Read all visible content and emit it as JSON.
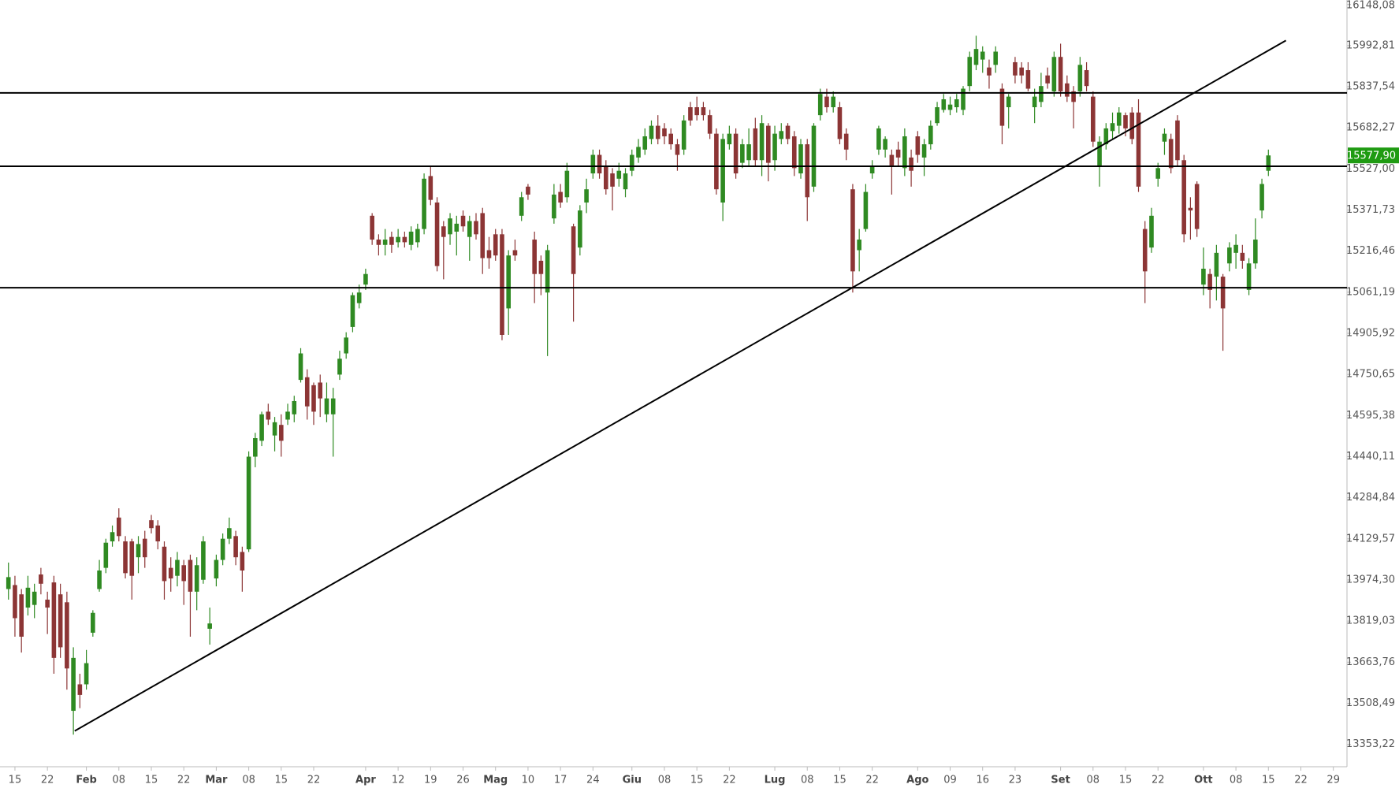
{
  "chart_data": {
    "type": "candlestick",
    "up_color": "#2f8a22",
    "down_color": "#8c3535",
    "line_color": "#000000",
    "xlim": [
      -1.3,
      206.1
    ],
    "xticks": [
      {
        "value": 1,
        "label": "15"
      },
      {
        "value": 6,
        "label": "22"
      },
      {
        "value": 12,
        "label": "Feb"
      },
      {
        "value": 17,
        "label": "08"
      },
      {
        "value": 22,
        "label": "15"
      },
      {
        "value": 27,
        "label": "22"
      },
      {
        "value": 32,
        "label": "Mar"
      },
      {
        "value": 37,
        "label": "08"
      },
      {
        "value": 42,
        "label": "15"
      },
      {
        "value": 47,
        "label": "22"
      },
      {
        "value": 55,
        "label": "Apr"
      },
      {
        "value": 60,
        "label": "12"
      },
      {
        "value": 65,
        "label": "19"
      },
      {
        "value": 70,
        "label": "26"
      },
      {
        "value": 75,
        "label": "Mag"
      },
      {
        "value": 80,
        "label": "10"
      },
      {
        "value": 85,
        "label": "17"
      },
      {
        "value": 90,
        "label": "24"
      },
      {
        "value": 96,
        "label": "Giu"
      },
      {
        "value": 101,
        "label": "08"
      },
      {
        "value": 106,
        "label": "15"
      },
      {
        "value": 111,
        "label": "22"
      },
      {
        "value": 118,
        "label": "Lug"
      },
      {
        "value": 123,
        "label": "08"
      },
      {
        "value": 128,
        "label": "15"
      },
      {
        "value": 133,
        "label": "22"
      },
      {
        "value": 140,
        "label": "Ago"
      },
      {
        "value": 145,
        "label": "09"
      },
      {
        "value": 150,
        "label": "16"
      },
      {
        "value": 155,
        "label": "23"
      },
      {
        "value": 162,
        "label": "Set"
      },
      {
        "value": 167,
        "label": "08"
      },
      {
        "value": 172,
        "label": "15"
      },
      {
        "value": 177,
        "label": "22"
      },
      {
        "value": 184,
        "label": "Ott"
      },
      {
        "value": 189,
        "label": "08"
      },
      {
        "value": 194,
        "label": "15"
      },
      {
        "value": 199,
        "label": "22"
      },
      {
        "value": 204,
        "label": "29"
      }
    ],
    "ylim": [
      13268.8,
      16165
    ],
    "yticks": [
      {
        "value": 16148.08,
        "label": "16148,08"
      },
      {
        "value": 15992.81,
        "label": "15992,81"
      },
      {
        "value": 15837.54,
        "label": "15837,54"
      },
      {
        "value": 15682.27,
        "label": "15682,27"
      },
      {
        "value": 15527.0,
        "label": "15527,00"
      },
      {
        "value": 15371.73,
        "label": "15371,73"
      },
      {
        "value": 15216.46,
        "label": "15216,46"
      },
      {
        "value": 15061.19,
        "label": "15061,19"
      },
      {
        "value": 14905.92,
        "label": "14905,92"
      },
      {
        "value": 14750.65,
        "label": "14750,65"
      },
      {
        "value": 14595.38,
        "label": "14595,38"
      },
      {
        "value": 14440.11,
        "label": "14440,11"
      },
      {
        "value": 14284.84,
        "label": "14284,84"
      },
      {
        "value": 14129.57,
        "label": "14129,57"
      },
      {
        "value": 13974.3,
        "label": "13974,30"
      },
      {
        "value": 13819.03,
        "label": "13819,03"
      },
      {
        "value": 13663.76,
        "label": "13663,76"
      },
      {
        "value": 13508.49,
        "label": "13508,49"
      },
      {
        "value": 13353.22,
        "label": "13353,22"
      }
    ],
    "last_price": {
      "value": 15577.9,
      "label": "15577,90"
    },
    "levels": [
      15814,
      15537,
      15078
    ],
    "trendline": {
      "x": [
        10.2,
        196.7
      ],
      "y": [
        13404,
        16012
      ]
    },
    "open": [
      13940,
      13955,
      13920,
      13870,
      13880,
      13995,
      13900,
      13965,
      13920,
      13890,
      13480,
      13580,
      13580,
      13775,
      13940,
      14020,
      14120,
      14210,
      14120,
      14120,
      14060,
      14130,
      14200,
      14180,
      14100,
      14020,
      13990,
      14030,
      14050,
      13930,
      13975,
      13790,
      13980,
      14050,
      14130,
      14140,
      14080,
      14090,
      14440,
      14500,
      14610,
      14520,
      14560,
      14580,
      14600,
      14730,
      14740,
      14710,
      14720,
      14600,
      14600,
      14750,
      14830,
      14930,
      15020,
      15090,
      15350,
      15260,
      15240,
      15270,
      15250,
      15270,
      15240,
      15250,
      15300,
      15500,
      15400,
      15310,
      15280,
      15290,
      15350,
      15270,
      15330,
      15360,
      15220,
      15280,
      15280,
      15000,
      15220,
      15350,
      15460,
      15260,
      15180,
      15060,
      15340,
      15440,
      15420,
      15310,
      15230,
      15400,
      15510,
      15580,
      15540,
      15510,
      15490,
      15450,
      15520,
      15570,
      15600,
      15640,
      15690,
      15680,
      15660,
      15620,
      15600,
      15760,
      15760,
      15760,
      15730,
      15660,
      15400,
      15620,
      15660,
      15550,
      15560,
      15680,
      15560,
      15690,
      15560,
      15640,
      15690,
      15650,
      15510,
      15620,
      15460,
      15730,
      15800,
      15760,
      15760,
      15660,
      15450,
      15220,
      15300,
      15510,
      15600,
      15600,
      15580,
      15600,
      15530,
      15570,
      15650,
      15570,
      15620,
      15700,
      15750,
      15750,
      15760,
      15750,
      15840,
      15920,
      15940,
      15910,
      15920,
      15830,
      15760,
      15930,
      15910,
      15900,
      15760,
      15780,
      15880,
      15820,
      15950,
      15850,
      15820,
      15820,
      15900,
      15800,
      15540,
      15620,
      15670,
      15690,
      15730,
      15740,
      15740,
      15300,
      15230,
      15490,
      15630,
      15640,
      15710,
      15560,
      15380,
      15470,
      15090,
      15130,
      15120,
      15120,
      15170,
      15210,
      15210,
      15070,
      15170,
      15370,
      15520
    ],
    "high": [
      14040,
      13990,
      13940,
      13990,
      13960,
      14020,
      13930,
      13990,
      13960,
      13930,
      13720,
      13620,
      13710,
      13860,
      14050,
      14130,
      14180,
      14245,
      14140,
      14130,
      14140,
      14160,
      14220,
      14200,
      14120,
      14060,
      14080,
      14050,
      14070,
      14060,
      14140,
      13870,
      14070,
      14150,
      14210,
      14160,
      14100,
      14460,
      14530,
      14610,
      14640,
      14590,
      14600,
      14640,
      14670,
      14850,
      14770,
      14720,
      14750,
      14720,
      14700,
      14840,
      14910,
      15060,
      15090,
      15150,
      15360,
      15280,
      15300,
      15290,
      15300,
      15290,
      15310,
      15320,
      15510,
      15540,
      15420,
      15330,
      15360,
      15350,
      15370,
      15350,
      15360,
      15380,
      15270,
      15300,
      15300,
      15220,
      15260,
      15440,
      15470,
      15290,
      15200,
      15240,
      15470,
      15470,
      15550,
      15320,
      15390,
      15490,
      15600,
      15600,
      15560,
      15530,
      15550,
      15530,
      15600,
      15640,
      15680,
      15710,
      15730,
      15700,
      15680,
      15640,
      15730,
      15780,
      15800,
      15780,
      15750,
      15680,
      15660,
      15690,
      15680,
      15640,
      15680,
      15720,
      15730,
      15700,
      15690,
      15700,
      15700,
      15670,
      15640,
      15640,
      15700,
      15830,
      15830,
      15820,
      15780,
      15680,
      15470,
      15300,
      15470,
      15560,
      15690,
      15650,
      15600,
      15630,
      15680,
      15600,
      15670,
      15640,
      15710,
      15780,
      15810,
      15800,
      15810,
      15840,
      15970,
      16030,
      15990,
      15940,
      15990,
      15850,
      15810,
      15950,
      15930,
      15930,
      15830,
      15890,
      15910,
      15970,
      16000,
      15880,
      15840,
      15950,
      15930,
      15820,
      15650,
      15700,
      15740,
      15760,
      15740,
      15760,
      15790,
      15330,
      15380,
      15550,
      15680,
      15660,
      15730,
      15580,
      15420,
      15480,
      15230,
      15150,
      15240,
      15130,
      15250,
      15280,
      15240,
      15190,
      15340,
      15490,
      15600
    ],
    "low": [
      13900,
      13760,
      13700,
      13840,
      13830,
      13920,
      13770,
      13620,
      13680,
      13560,
      13390,
      13490,
      13560,
      13760,
      13930,
      14000,
      14100,
      14120,
      13980,
      13900,
      14000,
      14020,
      14150,
      14090,
      13900,
      13930,
      13950,
      13880,
      13760,
      13860,
      13960,
      13730,
      13950,
      14030,
      14110,
      14030,
      13930,
      14080,
      14400,
      14480,
      14560,
      14460,
      14440,
      14560,
      14570,
      14720,
      14580,
      14560,
      14590,
      14570,
      14440,
      14730,
      14810,
      14910,
      15000,
      15070,
      15240,
      15200,
      15200,
      15210,
      15230,
      15230,
      15220,
      15230,
      15280,
      15390,
      15140,
      15110,
      15240,
      15200,
      15290,
      15180,
      15260,
      15130,
      15150,
      15180,
      14880,
      14900,
      15180,
      15330,
      15410,
      15020,
      15050,
      14820,
      15320,
      15380,
      15400,
      14950,
      15200,
      15360,
      15490,
      15490,
      15430,
      15370,
      15460,
      15420,
      15500,
      15550,
      15580,
      15620,
      15620,
      15620,
      15600,
      15520,
      15580,
      15690,
      15710,
      15710,
      15640,
      15430,
      15330,
      15600,
      15490,
      15530,
      15540,
      15540,
      15500,
      15480,
      15520,
      15620,
      15620,
      15500,
      15490,
      15330,
      15440,
      15710,
      15740,
      15740,
      15620,
      15560,
      15060,
      15140,
      15290,
      15490,
      15580,
      15570,
      15430,
      15540,
      15500,
      15460,
      15550,
      15500,
      15600,
      15690,
      15740,
      15730,
      15740,
      15730,
      15820,
      15900,
      15890,
      15830,
      15890,
      15620,
      15680,
      15850,
      15850,
      15820,
      15700,
      15760,
      15830,
      15800,
      15800,
      15780,
      15680,
      15800,
      15820,
      15610,
      15460,
      15600,
      15640,
      15660,
      15650,
      15620,
      15440,
      15020,
      15210,
      15460,
      15580,
      15510,
      15540,
      15250,
      15260,
      15270,
      15050,
      15000,
      15030,
      14840,
      15140,
      15150,
      15150,
      15050,
      15150,
      15340,
      15500
    ],
    "close": [
      13985,
      13830,
      13760,
      13945,
      13930,
      13960,
      13870,
      13680,
      13720,
      13640,
      13680,
      13540,
      13660,
      13850,
      14010,
      14115,
      14155,
      14140,
      14000,
      13990,
      14110,
      14060,
      14170,
      14120,
      13970,
      13980,
      14050,
      13970,
      13930,
      14030,
      14120,
      13810,
      14050,
      14130,
      14170,
      14060,
      14010,
      14440,
      14510,
      14600,
      14580,
      14570,
      14500,
      14610,
      14650,
      14830,
      14630,
      14610,
      14660,
      14660,
      14660,
      14810,
      14890,
      15050,
      15060,
      15130,
      15260,
      15240,
      15260,
      15240,
      15270,
      15250,
      15290,
      15300,
      15490,
      15410,
      15160,
      15270,
      15340,
      15320,
      15310,
      15330,
      15280,
      15190,
      15190,
      15200,
      14900,
      15200,
      15200,
      15420,
      15430,
      15130,
      15130,
      15220,
      15430,
      15400,
      15520,
      15130,
      15370,
      15450,
      15580,
      15510,
      15450,
      15460,
      15520,
      15510,
      15580,
      15610,
      15650,
      15690,
      15640,
      15650,
      15620,
      15580,
      15710,
      15710,
      15730,
      15730,
      15660,
      15450,
      15640,
      15660,
      15510,
      15620,
      15620,
      15560,
      15700,
      15550,
      15660,
      15670,
      15640,
      15530,
      15620,
      15420,
      15690,
      15810,
      15760,
      15800,
      15640,
      15600,
      15140,
      15260,
      15440,
      15540,
      15680,
      15640,
      15540,
      15570,
      15650,
      15520,
      15580,
      15620,
      15690,
      15760,
      15790,
      15770,
      15790,
      15830,
      15950,
      15980,
      15970,
      15880,
      15970,
      15690,
      15800,
      15880,
      15880,
      15830,
      15800,
      15840,
      15850,
      15950,
      15820,
      15800,
      15780,
      15920,
      15840,
      15630,
      15630,
      15680,
      15700,
      15740,
      15680,
      15640,
      15460,
      15140,
      15350,
      15530,
      15660,
      15530,
      15560,
      15280,
      15370,
      15300,
      15150,
      15070,
      15210,
      15000,
      15230,
      15240,
      15180,
      15170,
      15260,
      15470,
      15577.9
    ]
  }
}
